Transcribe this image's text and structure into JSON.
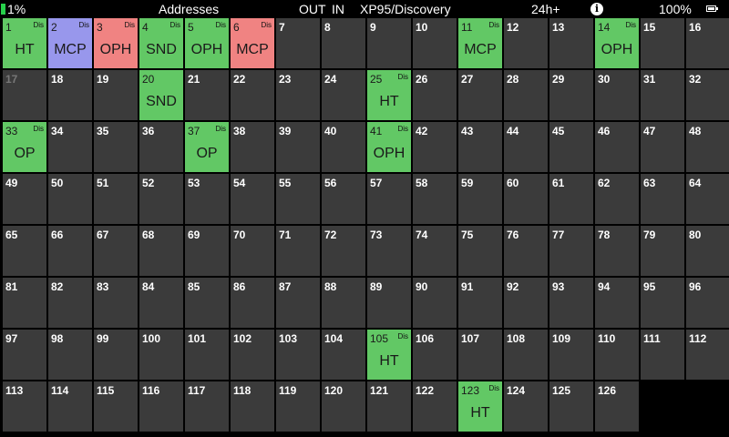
{
  "status_bar": {
    "battery_left": "1%",
    "title": "Addresses",
    "out_label": "OUT",
    "in_label": "IN",
    "protocol": "XP95/Discovery",
    "time_label": "24h+",
    "info_icon_glyph": "i",
    "battery_right": "100%",
    "icons": [
      "battery-level-icon",
      "info-icon",
      "battery-icon"
    ]
  },
  "colors": {
    "green": "#62c865",
    "blue": "#9897ec",
    "red": "#f08382",
    "empty": "#3b3b3b",
    "background": "#000000"
  },
  "grid": {
    "columns": 16,
    "devices": {
      "1": {
        "type": "HT",
        "dis": "Dis",
        "color": "green"
      },
      "2": {
        "type": "MCP",
        "dis": "Dis",
        "color": "blue"
      },
      "3": {
        "type": "OPH",
        "dis": "Dis",
        "color": "red"
      },
      "4": {
        "type": "SND",
        "dis": "Dis",
        "color": "green"
      },
      "5": {
        "type": "OPH",
        "dis": "Dis",
        "color": "green"
      },
      "6": {
        "type": "MCP",
        "dis": "Dis",
        "color": "red"
      },
      "11": {
        "type": "MCP",
        "dis": "Dis",
        "color": "green"
      },
      "14": {
        "type": "OPH",
        "dis": "Dis",
        "color": "green"
      },
      "20": {
        "type": "SND",
        "dis": "",
        "color": "green"
      },
      "25": {
        "type": "HT",
        "dis": "Dis",
        "color": "green"
      },
      "33": {
        "type": "OP",
        "dis": "Dis",
        "color": "green"
      },
      "37": {
        "type": "OP",
        "dis": "Dis",
        "color": "green"
      },
      "41": {
        "type": "OPH",
        "dis": "Dis",
        "color": "green"
      },
      "105": {
        "type": "HT",
        "dis": "Dis",
        "color": "green"
      },
      "123": {
        "type": "HT",
        "dis": "Dis",
        "color": "green"
      }
    },
    "dim_addresses": [
      17
    ],
    "labels": [
      "1",
      "2",
      "3",
      "4",
      "5",
      "6",
      "7",
      "8",
      "9",
      "10",
      "11",
      "12",
      "13",
      "14",
      "15",
      "16",
      "17",
      "18",
      "19",
      "20",
      "21",
      "22",
      "23",
      "24",
      "25",
      "26",
      "27",
      "28",
      "29",
      "30",
      "31",
      "32",
      "33",
      "34",
      "35",
      "36",
      "37",
      "38",
      "39",
      "40",
      "41",
      "42",
      "43",
      "44",
      "45",
      "46",
      "47",
      "48",
      "49",
      "50",
      "51",
      "52",
      "53",
      "54",
      "55",
      "56",
      "57",
      "58",
      "59",
      "60",
      "61",
      "62",
      "63",
      "64",
      "65",
      "66",
      "67",
      "68",
      "69",
      "70",
      "71",
      "72",
      "73",
      "74",
      "75",
      "76",
      "77",
      "78",
      "79",
      "80",
      "81",
      "82",
      "83",
      "84",
      "85",
      "86",
      "87",
      "88",
      "89",
      "90",
      "91",
      "92",
      "93",
      "94",
      "95",
      "96",
      "97",
      "98",
      "99",
      "100",
      "101",
      "102",
      "103",
      "104",
      "105",
      "106",
      "107",
      "108",
      "109",
      "110",
      "111",
      "112",
      "113",
      "114",
      "115",
      "116",
      "117",
      "118",
      "119",
      "120",
      "121",
      "122",
      "123",
      "124",
      "125",
      "126"
    ]
  }
}
